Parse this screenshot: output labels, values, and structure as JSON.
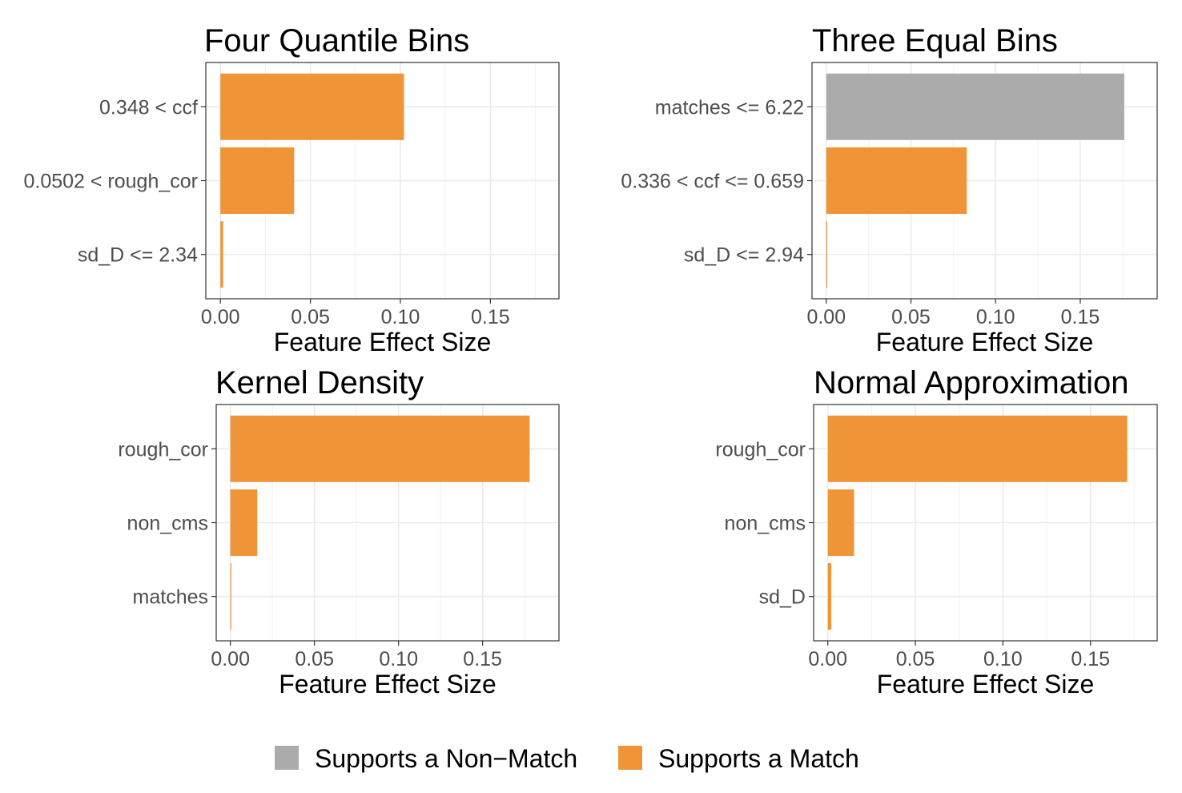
{
  "legend": {
    "items": [
      {
        "label": "Supports a Non−Match",
        "color": "#ababab"
      },
      {
        "label": "Supports a Match",
        "color": "#f09537"
      }
    ]
  },
  "chart_data": [
    {
      "type": "bar",
      "orientation": "horizontal",
      "title": "Four Quantile Bins",
      "xlabel": "Feature Effect Size",
      "ylabel": "",
      "xlim": [
        0,
        0.18
      ],
      "x_ticks": [
        "0.00",
        "0.05",
        "0.10",
        "0.15"
      ],
      "grid": true,
      "categories": [
        "0.348 < ccf",
        "0.0502 < rough_cor",
        "sd_D <= 2.34"
      ],
      "values": [
        0.102,
        0.041,
        0.0015
      ],
      "support": [
        "Supports a Match",
        "Supports a Match",
        "Supports a Match"
      ]
    },
    {
      "type": "bar",
      "orientation": "horizontal",
      "title": "Three Equal Bins",
      "xlabel": "Feature Effect Size",
      "ylabel": "",
      "xlim": [
        0,
        0.187
      ],
      "x_ticks": [
        "0.00",
        "0.05",
        "0.10",
        "0.15"
      ],
      "grid": true,
      "categories": [
        "matches <= 6.22",
        "0.336 < ccf <= 0.659",
        "sd_D <= 2.94"
      ],
      "values": [
        0.176,
        0.083,
        0.0004
      ],
      "support": [
        "Supports a Non−Match",
        "Supports a Match",
        "Supports a Match"
      ]
    },
    {
      "type": "bar",
      "orientation": "horizontal",
      "title": "Kernel Density",
      "xlabel": "Feature Effect Size",
      "ylabel": "",
      "xlim": [
        0,
        0.187
      ],
      "x_ticks": [
        "0.00",
        "0.05",
        "0.10",
        "0.15"
      ],
      "grid": true,
      "categories": [
        "rough_cor",
        "non_cms",
        "matches"
      ],
      "values": [
        0.178,
        0.016,
        0.0005
      ],
      "support": [
        "Supports a Match",
        "Supports a Match",
        "Supports a Match"
      ]
    },
    {
      "type": "bar",
      "orientation": "horizontal",
      "title": "Normal Approximation",
      "xlabel": "Feature Effect Size",
      "ylabel": "",
      "xlim": [
        0,
        0.18
      ],
      "x_ticks": [
        "0.00",
        "0.05",
        "0.10",
        "0.15"
      ],
      "grid": true,
      "categories": [
        "rough_cor",
        "non_cms",
        "sd_D"
      ],
      "values": [
        0.171,
        0.015,
        0.002
      ],
      "support": [
        "Supports a Match",
        "Supports a Match",
        "Supports a Match"
      ]
    }
  ]
}
